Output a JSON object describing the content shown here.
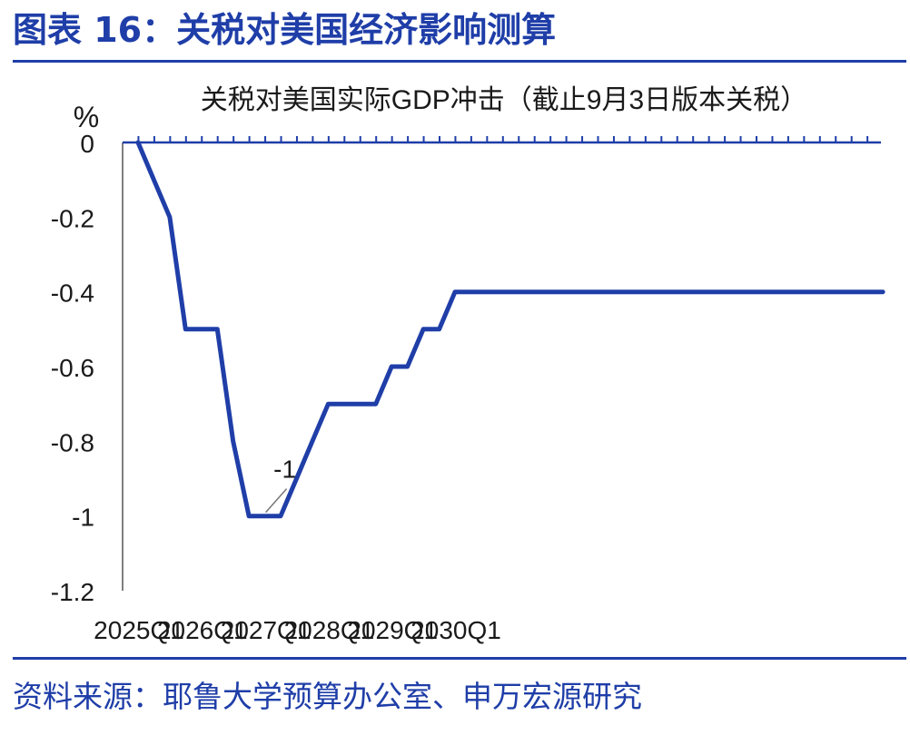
{
  "figure": {
    "title": "图表 16：关税对美国经济影响测算",
    "source": "资料来源：耶鲁大学预算办公室、申万宏源研究"
  },
  "colors": {
    "accent": "#1f3ea8",
    "line": "#1f3ea8",
    "text": "#1a1a1a"
  },
  "chart_data": {
    "type": "line",
    "title": "关税对美国实际GDP冲击（截止9月3日版本关税）",
    "ylabel": "%",
    "xlabel": "",
    "ylim": [
      -1.2,
      0
    ],
    "yticks": [
      0,
      -0.2,
      -0.4,
      -0.6,
      -0.8,
      -1,
      -1.2
    ],
    "ytick_labels": [
      "0",
      "-0.2",
      "-0.4",
      "-0.6",
      "-0.8",
      "-1",
      "-1.2"
    ],
    "x_tick_labels": [
      "2025Q1",
      "2026Q1",
      "2027Q1",
      "2028Q1",
      "2029Q1",
      "2030Q1"
    ],
    "grid": false,
    "series": [
      {
        "values": [
          0,
          -0.1,
          -0.2,
          -0.5,
          -0.5,
          -0.5,
          -0.8,
          -1,
          -1,
          -1,
          -0.9,
          -0.8,
          -0.7,
          -0.7,
          -0.7,
          -0.7,
          -0.6,
          -0.6,
          -0.5,
          -0.5,
          -0.4,
          -0.4,
          -0.4,
          -0.4,
          -0.4,
          -0.4,
          -0.4,
          -0.4,
          -0.4,
          -0.4,
          -0.4,
          -0.4,
          -0.4,
          -0.4,
          -0.4,
          -0.4,
          -0.4,
          -0.4,
          -0.4,
          -0.4,
          -0.4,
          -0.4,
          -0.4,
          -0.4,
          -0.4,
          -0.4,
          -0.4,
          -0.4
        ]
      }
    ],
    "annotations": [
      {
        "text": "-1",
        "period_index": 8,
        "value": -1
      }
    ]
  }
}
